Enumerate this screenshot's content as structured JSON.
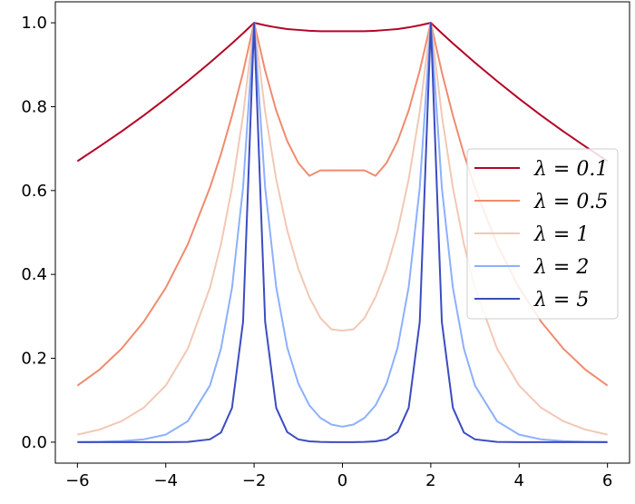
{
  "chart_data": {
    "type": "line",
    "title": "",
    "xlabel": "",
    "ylabel": "",
    "xlim": [
      -6.5,
      6.5
    ],
    "ylim": [
      -0.05,
      1.05
    ],
    "x_ticks": [
      -6,
      -4,
      -2,
      0,
      2,
      4,
      6
    ],
    "x_tick_labels": [
      "−6",
      "−4",
      "−2",
      "0",
      "2",
      "4",
      "6"
    ],
    "y_ticks": [
      0.0,
      0.2,
      0.4,
      0.6,
      0.8,
      1.0
    ],
    "y_tick_labels": [
      "0.0",
      "0.2",
      "0.4",
      "0.6",
      "0.8",
      "1.0"
    ],
    "grid": false,
    "legend_position": "center-right",
    "x": [
      -6,
      -5.5,
      -5,
      -4.5,
      -4,
      -3.5,
      -3,
      -2.75,
      -2.5,
      -2.25,
      -2,
      -1.75,
      -1.5,
      -1.25,
      -1,
      -0.75,
      -0.5,
      -0.25,
      0,
      0.25,
      0.5,
      0.75,
      1,
      1.25,
      1.5,
      1.75,
      2,
      2.25,
      2.5,
      2.75,
      3,
      3.5,
      4,
      4.5,
      5,
      5.5,
      6
    ],
    "series": [
      {
        "name": "λ = 0.1",
        "color": "#b40426",
        "values": [
          0.67,
          0.705,
          0.741,
          0.779,
          0.819,
          0.861,
          0.905,
          0.928,
          0.951,
          0.975,
          1.0,
          0.994,
          0.989,
          0.985,
          0.983,
          0.981,
          0.98,
          0.98,
          0.98,
          0.98,
          0.98,
          0.981,
          0.983,
          0.985,
          0.989,
          0.994,
          1.0,
          0.975,
          0.951,
          0.928,
          0.905,
          0.861,
          0.819,
          0.779,
          0.741,
          0.705,
          0.67
        ]
      },
      {
        "name": "λ = 0.5",
        "color": "#f08b6e",
        "values": [
          0.135,
          0.173,
          0.223,
          0.287,
          0.368,
          0.472,
          0.607,
          0.687,
          0.779,
          0.882,
          1.0,
          0.886,
          0.791,
          0.718,
          0.666,
          0.635,
          0.648,
          0.648,
          0.648,
          0.648,
          0.648,
          0.635,
          0.666,
          0.718,
          0.791,
          0.886,
          1.0,
          0.882,
          0.779,
          0.687,
          0.607,
          0.472,
          0.368,
          0.287,
          0.223,
          0.173,
          0.135
        ]
      },
      {
        "name": "λ = 1",
        "color": "#f2c8b4",
        "values": [
          0.018,
          0.03,
          0.05,
          0.082,
          0.135,
          0.223,
          0.368,
          0.472,
          0.607,
          0.779,
          1.0,
          0.788,
          0.627,
          0.505,
          0.414,
          0.346,
          0.296,
          0.269,
          0.266,
          0.269,
          0.296,
          0.346,
          0.414,
          0.505,
          0.627,
          0.788,
          1.0,
          0.779,
          0.607,
          0.472,
          0.368,
          0.223,
          0.135,
          0.082,
          0.05,
          0.03,
          0.018
        ]
      },
      {
        "name": "λ = 2",
        "color": "#8db0fe",
        "values": [
          0.0003,
          0.0009,
          0.0025,
          0.0067,
          0.018,
          0.05,
          0.135,
          0.223,
          0.368,
          0.607,
          1.0,
          0.607,
          0.37,
          0.226,
          0.14,
          0.088,
          0.058,
          0.042,
          0.037,
          0.042,
          0.058,
          0.088,
          0.14,
          0.226,
          0.37,
          0.607,
          1.0,
          0.607,
          0.368,
          0.223,
          0.135,
          0.05,
          0.018,
          0.0067,
          0.0025,
          0.0009,
          0.0003
        ]
      },
      {
        "name": "λ = 5",
        "color": "#3b4cc0",
        "values": [
          0.0,
          0.0,
          0.0,
          0.0,
          0.0,
          0.0006,
          0.0067,
          0.023,
          0.082,
          0.287,
          1.0,
          0.287,
          0.082,
          0.024,
          0.0067,
          0.002,
          0.0006,
          0.0002,
          0.0001,
          0.0002,
          0.0006,
          0.002,
          0.0067,
          0.024,
          0.082,
          0.287,
          1.0,
          0.287,
          0.082,
          0.023,
          0.0067,
          0.0006,
          0.0,
          0.0,
          0.0,
          0.0,
          0.0
        ]
      }
    ]
  }
}
